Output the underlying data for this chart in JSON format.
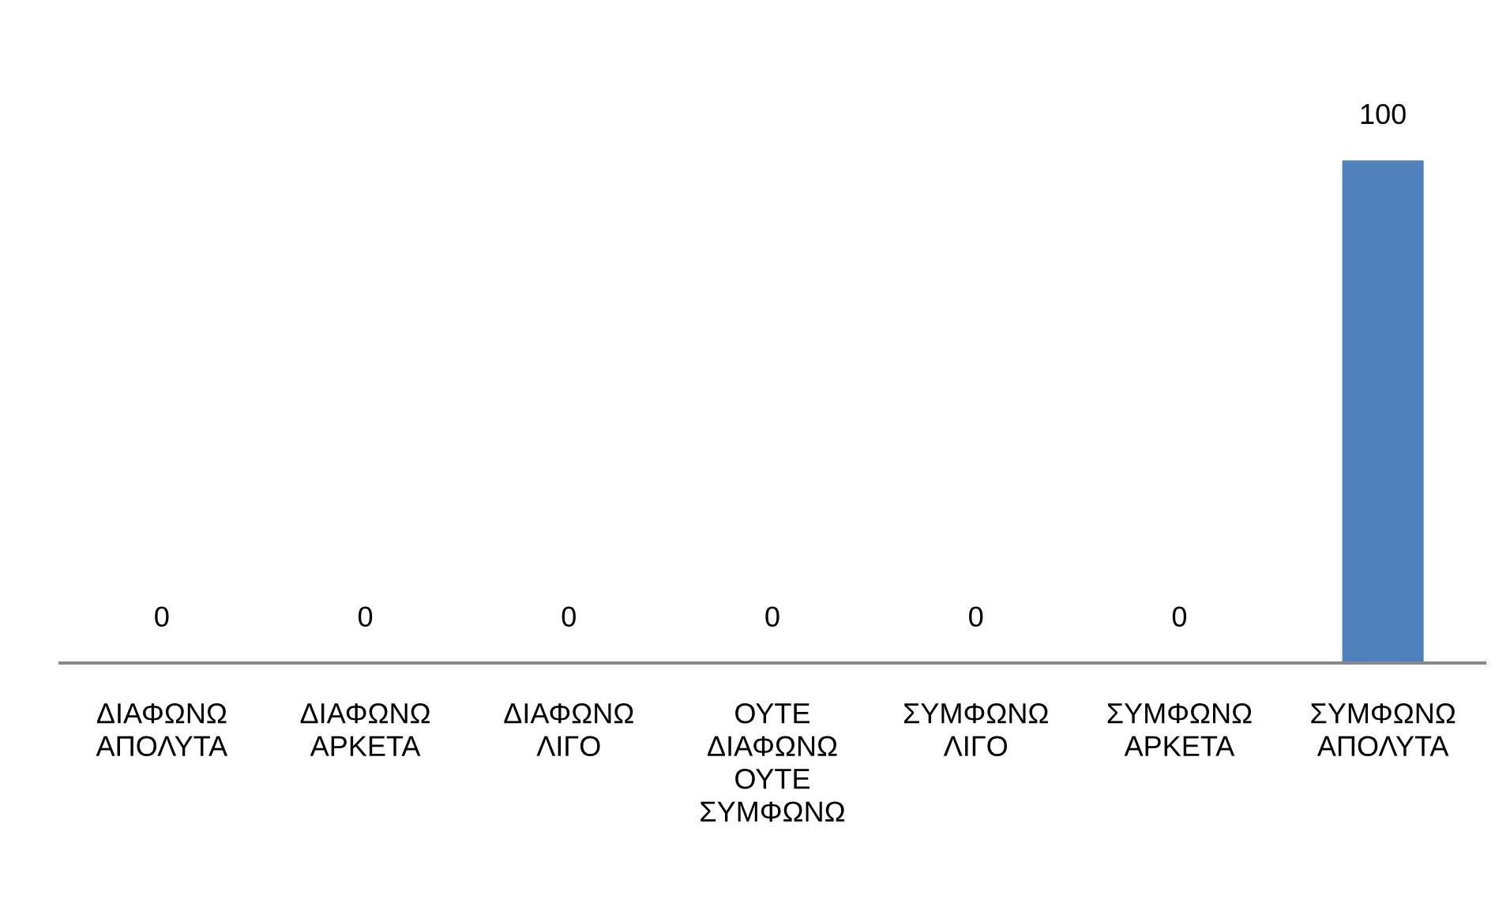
{
  "chart_data": {
    "type": "bar",
    "categories": [
      "ΔΙΑΦΩΝΩ ΑΠΟΛΥΤΑ",
      "ΔΙΑΦΩΝΩ ΑΡΚΕΤΑ",
      "ΔΙΑΦΩΝΩ ΛΙΓΟ",
      "ΟΥΤΕ ΔΙΑΦΩΝΩ ΟΥΤΕ ΣΥΜΦΩΝΩ",
      "ΣΥΜΦΩΝΩ ΛΙΓΟ",
      "ΣΥΜΦΩΝΩ ΑΡΚΕΤΑ",
      "ΣΥΜΦΩΝΩ ΑΠΟΛΥΤΑ"
    ],
    "values": [
      0,
      0,
      0,
      0,
      0,
      0,
      100
    ],
    "color": "#4f81bd",
    "data_labels": true
  }
}
